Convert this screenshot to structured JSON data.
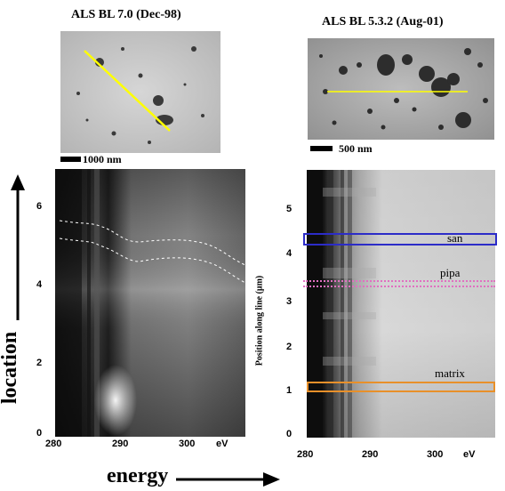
{
  "figure": {
    "left_panel": {
      "title": "ALS BL 7.0 (Dec-98)",
      "scale_bar_label": "1000 nm",
      "y_ticks": [
        "6",
        "4",
        "2",
        "0"
      ],
      "x_ticks": [
        "280",
        "290",
        "300",
        "eV"
      ],
      "y_axis_label": "location",
      "x_axis_label": "energy",
      "line_color": "#ffff00"
    },
    "right_panel": {
      "title": "ALS BL 5.3.2 (Aug-01)",
      "scale_bar_label": "500 nm",
      "y_ticks": [
        "5",
        "4",
        "3",
        "2",
        "1",
        "0"
      ],
      "x_ticks": [
        "280",
        "290",
        "300",
        "eV"
      ],
      "y_axis_label": "Position along line (μm)",
      "line_color": "#ffff00",
      "regions": [
        {
          "label": "san",
          "color": "#2c2cc8",
          "style": "solid"
        },
        {
          "label": "pipa",
          "color": "#e070c0",
          "style": "dotted"
        },
        {
          "label": "matrix",
          "color": "#e8902a",
          "style": "solid"
        }
      ]
    }
  }
}
